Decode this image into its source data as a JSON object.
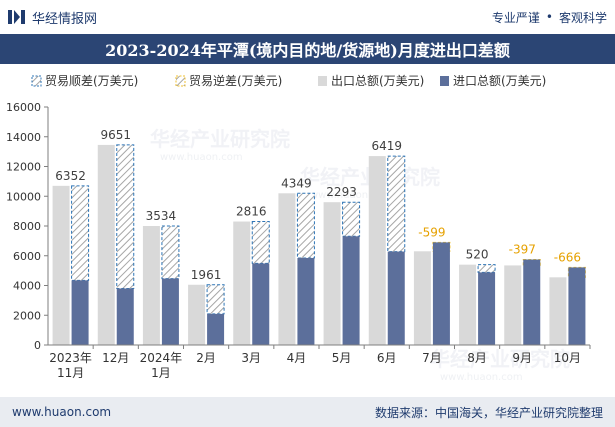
{
  "header": {
    "brand_name": "华经情报网",
    "tagline_left": "专业严谨",
    "tagline_sep": "•",
    "tagline_right": "客观科学"
  },
  "footer": {
    "website": "www.huaon.com",
    "source": "数据来源：中国海关，华经产业研究院整理"
  },
  "watermark": {
    "cn": "华经产业研究院",
    "en": "www.huaon.com"
  },
  "colors": {
    "title_bg": "#2b4574",
    "export_bar": "#d9d9d9",
    "import_bar": "#5c6f9b",
    "surplus_border": "#2e75b6",
    "deficit_border": "#f2c230",
    "deficit_label": "#e6a100",
    "label_dark": "#404040"
  },
  "chart_data": {
    "type": "bar",
    "title": "2023-2024年平潭(境内目的地/货源地)月度进出口差额",
    "categories": [
      [
        "2023年",
        "11月"
      ],
      [
        "12月"
      ],
      [
        "2024年",
        "1月"
      ],
      [
        "2月"
      ],
      [
        "3月"
      ],
      [
        "4月"
      ],
      [
        "5月"
      ],
      [
        "6月"
      ],
      [
        "7月"
      ],
      [
        "8月"
      ],
      [
        "9月"
      ],
      [
        "10月"
      ]
    ],
    "legend": [
      "贸易顺差(万美元)",
      "贸易逆差(万美元)",
      "出口总额(万美元)",
      "进口总额(万美元)"
    ],
    "legend_position": "top",
    "ylim": [
      0,
      16000
    ],
    "yticks": [
      0,
      2000,
      4000,
      6000,
      8000,
      10000,
      12000,
      14000,
      16000
    ],
    "series": [
      {
        "name": "出口总额(万美元)",
        "values": [
          10700,
          13450,
          8000,
          4050,
          8300,
          10200,
          9600,
          12700,
          6300,
          5400,
          5350,
          4550
        ]
      },
      {
        "name": "进口总额(万美元)",
        "values": [
          4348,
          3799,
          4466,
          2089,
          5484,
          5851,
          7307,
          6281,
          6899,
          4880,
          5747,
          5216
        ]
      }
    ],
    "balance": [
      6352,
      9651,
      3534,
      1961,
      2816,
      4349,
      2293,
      6419,
      -599,
      520,
      -397,
      -666
    ],
    "grid": false
  }
}
